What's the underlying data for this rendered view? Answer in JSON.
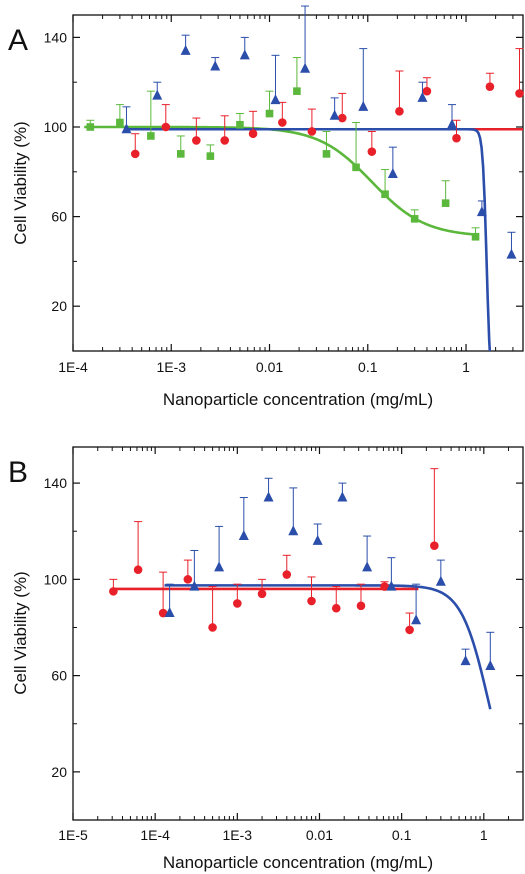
{
  "colors": {
    "red": "#e8202a",
    "blue": "#2b4eab",
    "green": "#5cb83c",
    "axis": "#111111"
  },
  "chart_data": [
    {
      "panel_label": "A",
      "type": "scatter",
      "xlabel": "Nanoparticle concentration (mg/mL)",
      "ylabel": "Cell Viability (%)",
      "xscale": "log",
      "xlim": [
        0.0001,
        3.8
      ],
      "ylim": [
        0,
        150
      ],
      "xticks": [
        {
          "value": 0.0001,
          "label": "1E-4"
        },
        {
          "value": 0.001,
          "label": "1E-3"
        },
        {
          "value": 0.01,
          "label": "0.01"
        },
        {
          "value": 0.1,
          "label": "0.1"
        },
        {
          "value": 1,
          "label": "1"
        }
      ],
      "yticks": [
        {
          "value": 20,
          "label": "20"
        },
        {
          "value": 60,
          "label": "60"
        },
        {
          "value": 100,
          "label": "100"
        },
        {
          "value": 140,
          "label": "140"
        }
      ],
      "series": [
        {
          "color": "red",
          "marker": "circle",
          "x": [
            0.00043,
            0.00088,
            0.0018,
            0.0035,
            0.0068,
            0.0135,
            0.027,
            0.055,
            0.11,
            0.21,
            0.4,
            0.8,
            1.75,
            3.5
          ],
          "y": [
            88,
            100,
            94,
            94,
            97,
            102,
            98,
            104,
            89,
            107,
            116,
            95,
            118,
            115
          ],
          "err": [
            9,
            10,
            10,
            11,
            10,
            9,
            10,
            11,
            9,
            18,
            6,
            8,
            6,
            20
          ]
        },
        {
          "color": "green",
          "marker": "square",
          "x": [
            0.00015,
            0.0003,
            0.00062,
            0.00125,
            0.0025,
            0.005,
            0.01,
            0.019,
            0.038,
            0.076,
            0.15,
            0.3,
            0.62,
            1.25
          ],
          "y": [
            100,
            102,
            96,
            88,
            87,
            101,
            106,
            116,
            88,
            82,
            70,
            59,
            66,
            51
          ],
          "err": [
            3,
            8,
            20,
            8,
            5,
            5,
            10,
            15,
            10,
            20,
            11,
            4,
            10,
            4
          ]
        },
        {
          "color": "blue",
          "marker": "triangle",
          "x": [
            0.00035,
            0.00072,
            0.0014,
            0.0028,
            0.0056,
            0.0115,
            0.023,
            0.046,
            0.09,
            0.18,
            0.36,
            0.72,
            1.45,
            2.9
          ],
          "y": [
            99,
            114,
            134,
            127,
            132,
            112,
            126,
            105,
            109,
            79,
            113,
            101,
            62,
            43
          ],
          "err": [
            10,
            6,
            7,
            4,
            8,
            20,
            28,
            8,
            26,
            12,
            7,
            9,
            5,
            10
          ]
        }
      ],
      "fits": [
        {
          "color": "red",
          "type": "flat",
          "x_start": 0.00034,
          "x_end": 3.8,
          "top": 99,
          "bottom": 99,
          "ec50": 1,
          "hill": 1
        },
        {
          "color": "green",
          "type": "sigmoid",
          "x_start": 0.00013,
          "x_end": 1.25,
          "top": 100,
          "bottom": 51,
          "ec50": 0.11,
          "hill": 1.6
        },
        {
          "color": "blue",
          "type": "sigmoid",
          "x_start": 0.00034,
          "x_end": 1.85,
          "top": 99,
          "bottom": -20,
          "ec50": 1.62,
          "hill": 22
        }
      ]
    },
    {
      "panel_label": "B",
      "type": "scatter",
      "xlabel": "Nanoparticle concentration (mg/mL)",
      "ylabel": "Cell Viability (%)",
      "xscale": "log",
      "xlim": [
        1e-05,
        3
      ],
      "ylim": [
        0,
        155
      ],
      "xticks": [
        {
          "value": 1e-05,
          "label": "1E-5"
        },
        {
          "value": 0.0001,
          "label": "1E-4"
        },
        {
          "value": 0.001,
          "label": "1E-3"
        },
        {
          "value": 0.01,
          "label": "0.01"
        },
        {
          "value": 0.1,
          "label": "0.1"
        },
        {
          "value": 1,
          "label": "1"
        }
      ],
      "yticks": [
        {
          "value": 20,
          "label": "20"
        },
        {
          "value": 60,
          "label": "60"
        },
        {
          "value": 100,
          "label": "100"
        },
        {
          "value": 140,
          "label": "140"
        }
      ],
      "series": [
        {
          "color": "red",
          "marker": "circle",
          "x": [
            3.1e-05,
            6.2e-05,
            0.000125,
            0.00025,
            0.0005,
            0.001,
            0.002,
            0.004,
            0.008,
            0.016,
            0.032,
            0.062,
            0.125,
            0.25
          ],
          "y": [
            95,
            104,
            86,
            100,
            80,
            90,
            94,
            102,
            91,
            88,
            89,
            97,
            79,
            114
          ],
          "err": [
            5,
            20,
            17,
            8,
            17,
            8,
            6,
            8,
            10,
            9,
            9,
            2,
            7,
            32
          ]
        },
        {
          "color": "blue",
          "marker": "triangle",
          "x": [
            0.00015,
            0.0003,
            0.0006,
            0.0012,
            0.0024,
            0.0048,
            0.0095,
            0.019,
            0.038,
            0.075,
            0.15,
            0.3,
            0.6,
            1.2
          ],
          "y": [
            86,
            97,
            105,
            118,
            134,
            120,
            116,
            134,
            105,
            97,
            83,
            99,
            66,
            64
          ],
          "err": [
            12,
            15,
            17,
            16,
            8,
            18,
            7,
            6,
            13,
            12,
            15,
            9,
            5,
            14
          ]
        }
      ],
      "fits": [
        {
          "color": "red",
          "type": "flat",
          "x_start": 3.1e-05,
          "x_end": 0.16,
          "top": 96,
          "bottom": 96,
          "ec50": 1,
          "hill": 1
        },
        {
          "color": "blue",
          "type": "sigmoid",
          "x_start": 0.00013,
          "x_end": 1.2,
          "top": 97.5,
          "bottom": 0,
          "ec50": 1.15,
          "hill": 2.6
        }
      ]
    }
  ]
}
